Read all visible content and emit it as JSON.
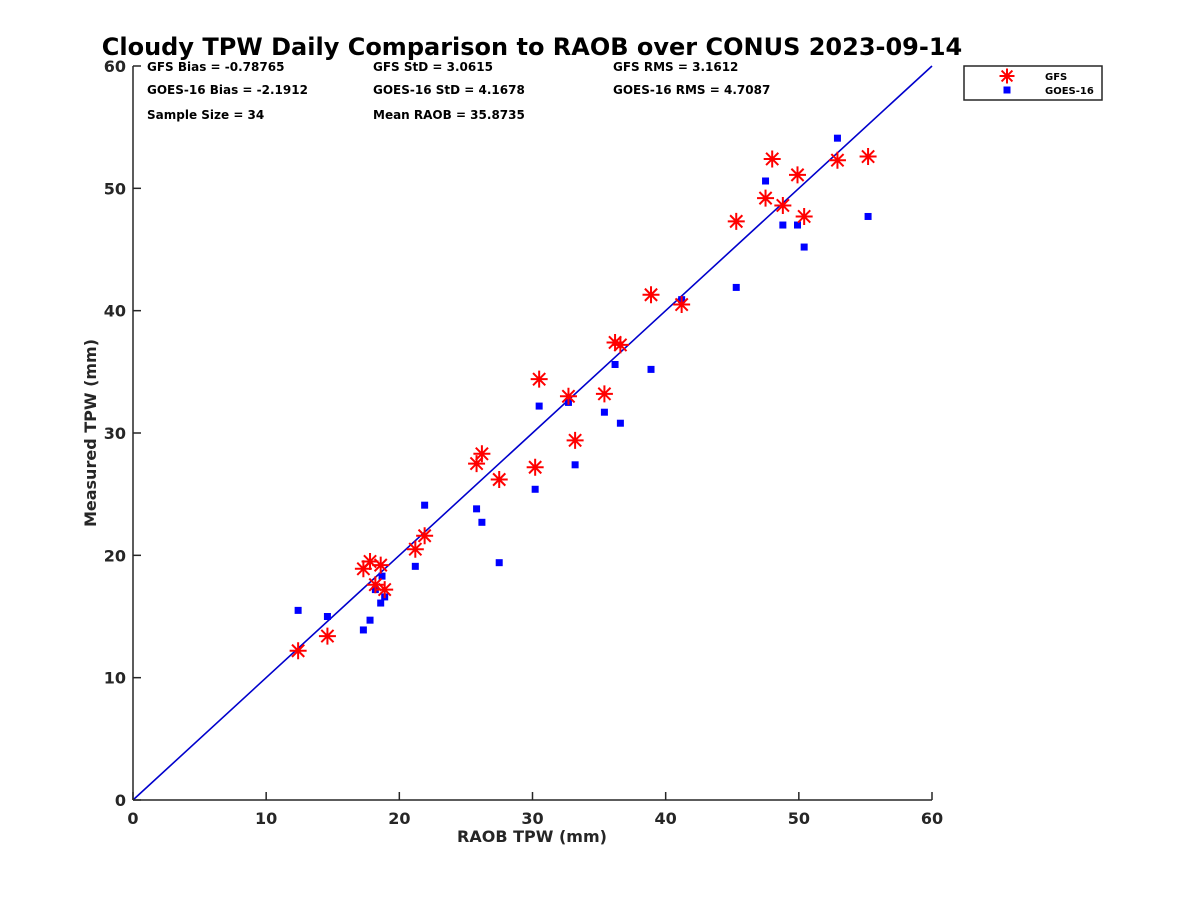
{
  "chart_data": {
    "type": "scatter",
    "title": "Cloudy TPW Daily Comparison to RAOB over CONUS 2023-09-14",
    "xlabel": "RAOB TPW (mm)",
    "ylabel": "Measured TPW (mm)",
    "xlim": [
      0,
      60
    ],
    "ylim": [
      0,
      60
    ],
    "xticks": [
      0,
      10,
      20,
      30,
      40,
      50,
      60
    ],
    "yticks": [
      0,
      10,
      20,
      30,
      40,
      50,
      60
    ],
    "grid": false,
    "legend_position": "outside-top-right",
    "stats": [
      "GFS Bias = -0.78765",
      "GFS StD = 3.0615",
      "GFS RMS = 3.1612",
      "GOES-16 Bias = -2.1912",
      "GOES-16 StD = 4.1678",
      "GOES-16 RMS = 4.7087",
      "Sample Size = 34",
      "Mean RAOB = 35.8735"
    ],
    "reference_line": {
      "x": [
        0,
        60
      ],
      "y": [
        0,
        60
      ],
      "color": "#0000cc"
    },
    "series": [
      {
        "name": "GFS",
        "marker": "asterisk",
        "color": "#ff0000",
        "points": [
          [
            12.4,
            12.2
          ],
          [
            14.6,
            13.4
          ],
          [
            17.3,
            18.9
          ],
          [
            17.8,
            19.5
          ],
          [
            18.2,
            17.6
          ],
          [
            18.6,
            19.2
          ],
          [
            18.9,
            17.2
          ],
          [
            21.2,
            20.5
          ],
          [
            21.9,
            21.6
          ],
          [
            25.8,
            27.5
          ],
          [
            26.2,
            28.3
          ],
          [
            27.5,
            26.2
          ],
          [
            30.2,
            27.2
          ],
          [
            30.5,
            34.4
          ],
          [
            32.7,
            33.0
          ],
          [
            33.2,
            29.4
          ],
          [
            35.4,
            33.2
          ],
          [
            36.2,
            37.4
          ],
          [
            36.6,
            37.2
          ],
          [
            38.9,
            41.3
          ],
          [
            41.2,
            40.5
          ],
          [
            45.3,
            47.3
          ],
          [
            47.5,
            49.2
          ],
          [
            48.0,
            52.4
          ],
          [
            48.8,
            48.6
          ],
          [
            49.9,
            51.1
          ],
          [
            50.4,
            47.7
          ],
          [
            52.9,
            52.3
          ],
          [
            55.2,
            52.6
          ]
        ]
      },
      {
        "name": "GOES-16",
        "marker": "square",
        "color": "#0000ff",
        "points": [
          [
            12.4,
            15.5
          ],
          [
            14.6,
            15.0
          ],
          [
            17.3,
            13.9
          ],
          [
            17.8,
            14.7
          ],
          [
            18.2,
            17.2
          ],
          [
            18.6,
            16.1
          ],
          [
            18.7,
            18.3
          ],
          [
            18.9,
            16.6
          ],
          [
            21.2,
            19.1
          ],
          [
            21.9,
            24.1
          ],
          [
            25.8,
            23.8
          ],
          [
            26.2,
            22.7
          ],
          [
            27.5,
            19.4
          ],
          [
            30.2,
            25.4
          ],
          [
            30.5,
            32.2
          ],
          [
            32.7,
            32.5
          ],
          [
            33.2,
            27.4
          ],
          [
            35.4,
            31.7
          ],
          [
            36.2,
            35.6
          ],
          [
            36.6,
            30.8
          ],
          [
            38.9,
            35.2
          ],
          [
            41.2,
            40.9
          ],
          [
            45.3,
            41.9
          ],
          [
            47.5,
            50.6
          ],
          [
            48.8,
            47.0
          ],
          [
            49.9,
            47.0
          ],
          [
            50.4,
            45.2
          ],
          [
            52.9,
            54.1
          ],
          [
            55.2,
            47.7
          ]
        ]
      }
    ]
  }
}
